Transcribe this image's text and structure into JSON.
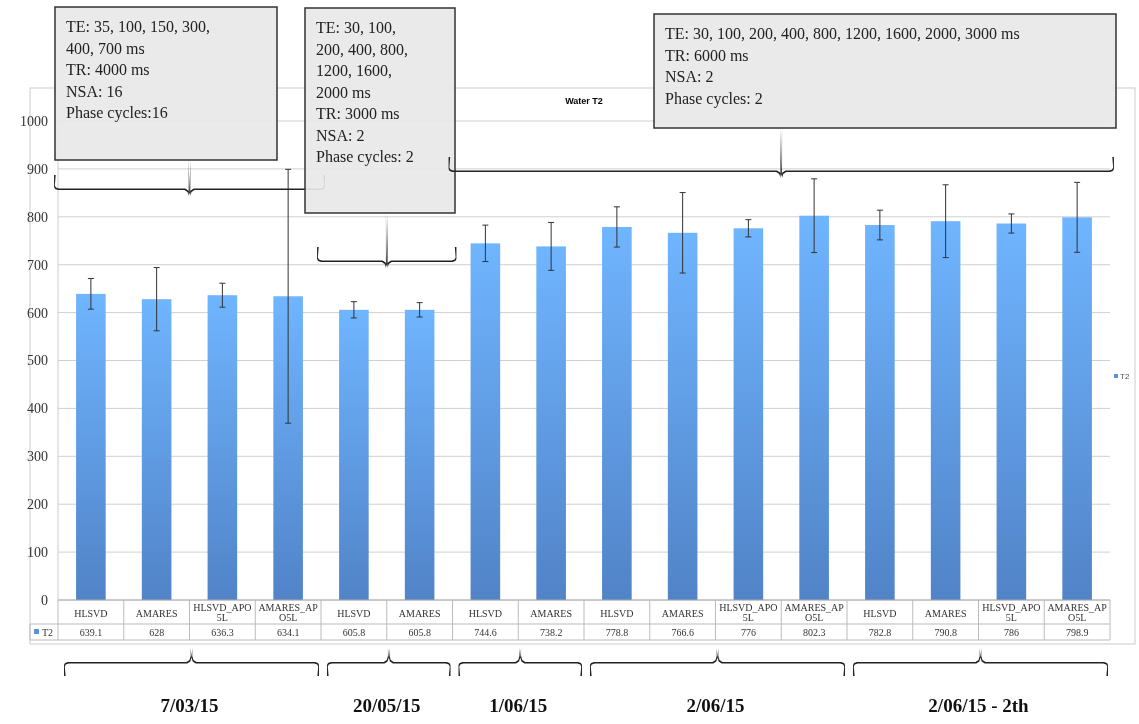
{
  "chart_data": {
    "type": "bar",
    "title": "Water T2",
    "categories": [
      "HLSVD",
      "AMARES",
      "HLSVD_APO5L",
      "AMARES_APO5L",
      "HLSVD",
      "AMARES",
      "HLSVD",
      "AMARES",
      "HLSVD",
      "AMARES",
      "HLSVD_APO5L",
      "AMARES_APO5L",
      "HLSVD",
      "AMARES",
      "HLSVD_APO5L",
      "AMARES_APO5L"
    ],
    "series": [
      {
        "name": "T2",
        "color": "#5a92de",
        "values": [
          639.1,
          628,
          636.3,
          634.1,
          605.8,
          605.8,
          744.6,
          738.2,
          778.8,
          766.6,
          776,
          802.3,
          782.8,
          790.8,
          786,
          798.9
        ],
        "errors": [
          32,
          66,
          25,
          265,
          17,
          15,
          38,
          50,
          42,
          84,
          18,
          77,
          31,
          76,
          20,
          73
        ]
      }
    ],
    "ylim": [
      0,
      1000
    ],
    "yticks": [
      0,
      100,
      200,
      300,
      400,
      500,
      600,
      700,
      800,
      900,
      1000
    ],
    "grid": "y",
    "legend": "right",
    "data_labels": true,
    "annotations": [
      "TE: 35, 100, 150, 300, 400, 700 ms\nTR: 4000 ms\nNSA: 16\nPhase cycles:16",
      "TE: 30, 100, 200, 400, 800, 1200, 1600, 2000 ms\nTR: 3000 ms\nNSA: 2\nPhase cycles: 2",
      "TE: 30, 100, 200, 400, 800, 1200, 1600, 2000, 3000 ms\nTR: 6000 ms\nNSA: 2\nPhase cycles: 2",
      "7/03/15",
      "20/05/15",
      "1/06/15",
      "2/06/15",
      "2/06/15 - 2th"
    ]
  }
}
